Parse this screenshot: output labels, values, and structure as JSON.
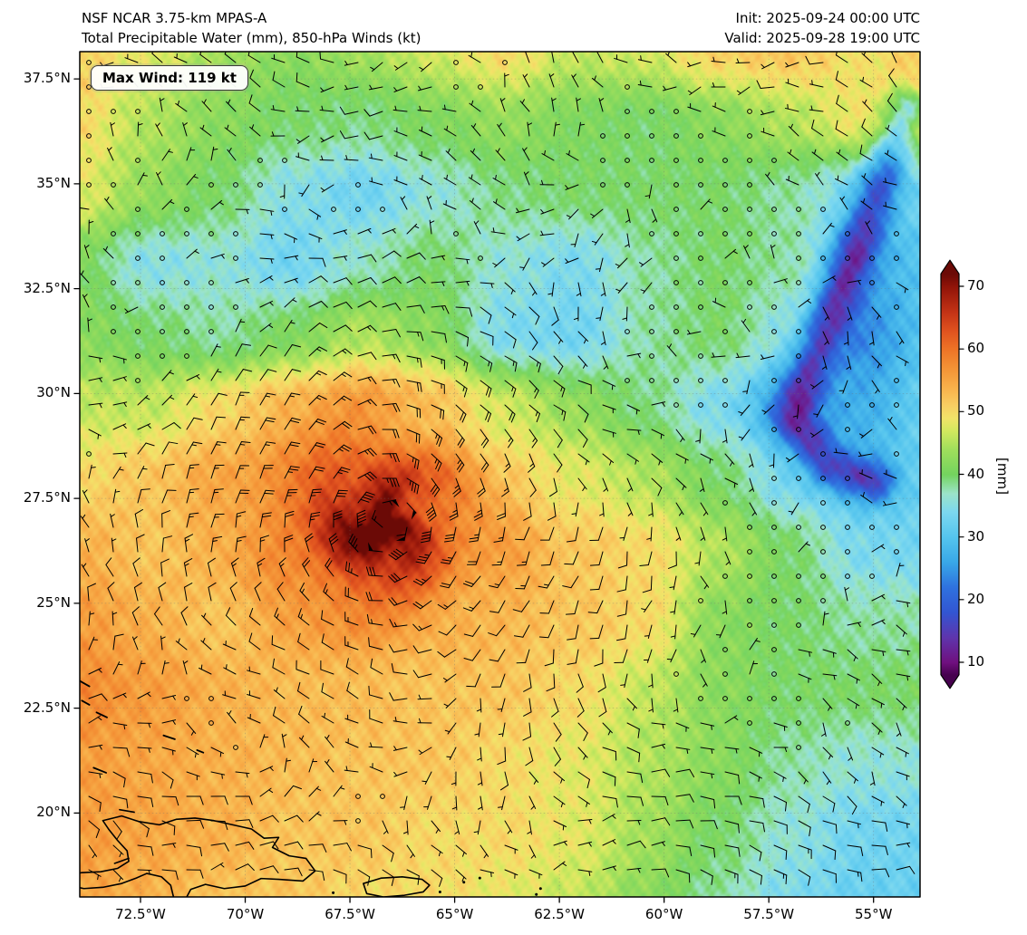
{
  "header": {
    "title_line1": "NSF NCAR 3.75-km MPAS-A",
    "title_line2": "Total Precipitable Water (mm), 850-hPa Winds (kt)",
    "init_label": "Init: 2025-09-24 00:00 UTC",
    "valid_label": "Valid: 2025-09-28 19:00 UTC"
  },
  "map": {
    "max_wind_label": "Max Wind: 119 kt"
  },
  "chart_data": {
    "type": "heatmap",
    "title": "NSF NCAR 3.75-km MPAS-A — Total Precipitable Water (mm), 850-hPa Winds (kt)",
    "init_time": "2025-09-24 00:00 UTC",
    "valid_time": "2025-09-28 19:00 UTC",
    "max_wind_kt": 119,
    "extent": {
      "lon_min": -73.95,
      "lon_max": -53.89,
      "lat_min": 18.0,
      "lat_max": 38.15
    },
    "xticks": [
      {
        "value": -72.5,
        "label": "72.5°W"
      },
      {
        "value": -70.0,
        "label": "70°W"
      },
      {
        "value": -67.5,
        "label": "67.5°W"
      },
      {
        "value": -65.0,
        "label": "65°W"
      },
      {
        "value": -62.5,
        "label": "62.5°W"
      },
      {
        "value": -60.0,
        "label": "60°W"
      },
      {
        "value": -57.5,
        "label": "57.5°W"
      },
      {
        "value": -55.0,
        "label": "55°W"
      }
    ],
    "yticks": [
      {
        "value": 37.5,
        "label": "37.5°N"
      },
      {
        "value": 35.0,
        "label": "35°N"
      },
      {
        "value": 32.5,
        "label": "32.5°N"
      },
      {
        "value": 30.0,
        "label": "30°N"
      },
      {
        "value": 27.5,
        "label": "27.5°N"
      },
      {
        "value": 25.0,
        "label": "25°N"
      },
      {
        "value": 22.5,
        "label": "22.5°N"
      },
      {
        "value": 20.0,
        "label": "20°N"
      }
    ],
    "colorbar": {
      "label": "[mm]",
      "ticks": [
        10,
        20,
        30,
        40,
        50,
        60,
        70
      ],
      "vmin": 8,
      "vmax": 72,
      "stops": [
        [
          8,
          "#46024e"
        ],
        [
          10,
          "#70107f"
        ],
        [
          14,
          "#5f35ad"
        ],
        [
          18,
          "#3356d2"
        ],
        [
          22,
          "#2f72df"
        ],
        [
          26,
          "#39a8e8"
        ],
        [
          30,
          "#55c5ee"
        ],
        [
          34,
          "#7cd8f0"
        ],
        [
          37,
          "#9ce4c9"
        ],
        [
          40,
          "#74d45f"
        ],
        [
          44,
          "#a0df5c"
        ],
        [
          47,
          "#d3e95f"
        ],
        [
          49,
          "#f2e469"
        ],
        [
          51,
          "#f8cf63"
        ],
        [
          54,
          "#f8b04a"
        ],
        [
          57,
          "#f49336"
        ],
        [
          60,
          "#ee7427"
        ],
        [
          63,
          "#e0521f"
        ],
        [
          66,
          "#c33316"
        ],
        [
          70,
          "#911409"
        ],
        [
          72,
          "#6b0a06"
        ]
      ]
    },
    "storm": {
      "center_lon": -66.6,
      "center_lat": 26.9,
      "core_peak_mm": 72,
      "max_wind_kt": 119
    },
    "grid": {
      "lons": [
        -74.0,
        -72.3,
        -70.6,
        -68.9,
        -67.2,
        -65.5,
        -63.8,
        -62.1,
        -60.4,
        -58.7,
        -57.0,
        -55.3,
        -53.6
      ],
      "lats": [
        38.2,
        36.5,
        34.8,
        33.1,
        31.4,
        29.7,
        28.0,
        26.3,
        24.6,
        22.9,
        21.2,
        19.5,
        17.8
      ],
      "values_mm": [
        [
          51,
          48,
          44,
          42,
          44,
          47,
          50,
          46,
          47,
          51,
          52,
          49,
          52
        ],
        [
          50,
          45,
          42,
          40,
          39,
          41,
          43,
          41,
          40,
          42,
          45,
          49,
          52
        ],
        [
          48,
          43,
          40,
          35,
          33,
          36,
          39,
          40,
          40,
          40,
          38,
          33,
          33
        ],
        [
          41,
          35,
          36,
          33,
          37,
          40,
          36,
          34,
          38,
          40,
          38,
          27,
          30
        ],
        [
          42,
          40,
          38,
          41,
          45,
          42,
          34,
          33,
          38,
          40,
          35,
          24,
          30
        ],
        [
          46,
          46,
          50,
          54,
          56,
          53,
          47,
          43,
          39,
          34,
          26,
          27,
          32
        ],
        [
          50,
          52,
          55,
          58,
          61,
          57,
          52,
          48,
          45,
          40,
          33,
          30,
          32
        ],
        [
          54,
          52,
          54,
          59,
          65,
          59,
          55,
          52,
          50,
          45,
          40,
          34,
          33
        ],
        [
          56,
          54,
          52,
          55,
          56,
          55,
          53,
          52,
          50,
          42,
          40,
          38,
          38
        ],
        [
          58,
          56,
          54,
          53,
          53,
          52,
          52,
          50,
          46,
          42,
          40,
          40,
          40
        ],
        [
          56,
          55,
          54,
          53,
          52,
          52,
          50,
          48,
          45,
          42,
          38,
          36,
          36
        ],
        [
          56,
          55,
          54,
          52,
          52,
          50,
          50,
          48,
          44,
          40,
          36,
          33,
          33
        ],
        [
          55,
          54,
          52,
          52,
          50,
          50,
          48,
          46,
          42,
          38,
          34,
          32,
          32
        ]
      ]
    },
    "dry_filament": [
      [
        -54.2,
        36.8
      ],
      [
        -55.1,
        34.2
      ],
      [
        -55.9,
        32.2
      ],
      [
        -56.6,
        30.4
      ],
      [
        -56.9,
        29.4
      ],
      [
        -56.1,
        28.3
      ],
      [
        -55.0,
        27.9
      ]
    ],
    "calm_zones": [
      {
        "lon": -58.8,
        "lat": 34.7,
        "sigma": 2.0
      },
      {
        "lon": -56.2,
        "lat": 26.3,
        "sigma": 2.2
      },
      {
        "lon": -72.8,
        "lat": 34.2,
        "sigma": 1.2
      }
    ],
    "coastlines": [
      [
        [
          -73.4,
          19.82
        ],
        [
          -72.95,
          19.93
        ],
        [
          -72.55,
          19.8
        ],
        [
          -72.05,
          19.72
        ],
        [
          -71.65,
          19.85
        ],
        [
          -71.2,
          19.88
        ],
        [
          -70.75,
          19.82
        ],
        [
          -70.3,
          19.72
        ],
        [
          -69.85,
          19.62
        ],
        [
          -69.55,
          19.4
        ],
        [
          -69.2,
          19.42
        ],
        [
          -69.35,
          19.18
        ],
        [
          -68.95,
          18.98
        ],
        [
          -68.55,
          18.92
        ],
        [
          -68.33,
          18.62
        ],
        [
          -68.62,
          18.38
        ],
        [
          -69.2,
          18.42
        ],
        [
          -69.62,
          18.44
        ],
        [
          -70.0,
          18.26
        ],
        [
          -70.5,
          18.2
        ],
        [
          -70.95,
          18.3
        ],
        [
          -71.3,
          18.18
        ],
        [
          -71.45,
          17.9
        ],
        [
          -71.7,
          17.95
        ],
        [
          -71.78,
          18.28
        ],
        [
          -72.0,
          18.48
        ],
        [
          -72.35,
          18.56
        ],
        [
          -72.6,
          18.45
        ],
        [
          -72.95,
          18.32
        ],
        [
          -73.4,
          18.23
        ],
        [
          -73.85,
          18.2
        ],
        [
          -74.25,
          18.28
        ],
        [
          -74.3,
          18.5
        ],
        [
          -73.9,
          18.58
        ],
        [
          -73.45,
          18.6
        ],
        [
          -73.05,
          18.68
        ],
        [
          -72.78,
          18.85
        ],
        [
          -72.82,
          19.1
        ],
        [
          -73.05,
          19.35
        ],
        [
          -73.25,
          19.6
        ],
        [
          -73.4,
          19.82
        ]
      ],
      [
        [
          -67.18,
          18.32
        ],
        [
          -66.75,
          18.45
        ],
        [
          -66.25,
          18.48
        ],
        [
          -65.78,
          18.42
        ],
        [
          -65.6,
          18.28
        ],
        [
          -65.75,
          18.12
        ],
        [
          -66.2,
          18.04
        ],
        [
          -66.7,
          18.0
        ],
        [
          -67.1,
          18.08
        ],
        [
          -67.18,
          18.32
        ]
      ],
      [
        [
          -73.12,
          18.8
        ],
        [
          -72.78,
          18.92
        ]
      ],
      [
        [
          -73.0,
          20.08
        ],
        [
          -72.65,
          20.02
        ]
      ]
    ],
    "dash_marks": [
      [
        [
          -73.95,
          23.15
        ],
        [
          -73.72,
          23.02
        ]
      ],
      [
        [
          -73.9,
          22.68
        ],
        [
          -73.72,
          22.58
        ]
      ],
      [
        [
          -73.55,
          22.4
        ],
        [
          -73.3,
          22.28
        ]
      ],
      [
        [
          -71.95,
          21.85
        ],
        [
          -71.68,
          21.76
        ]
      ],
      [
        [
          -71.15,
          21.5
        ],
        [
          -71.0,
          21.44
        ]
      ],
      [
        [
          -73.62,
          21.08
        ],
        [
          -73.32,
          20.96
        ]
      ]
    ],
    "island_marks": [
      [
        -67.9,
        18.1
      ],
      [
        -64.78,
        18.35
      ],
      [
        -64.4,
        18.45
      ],
      [
        -63.05,
        18.06
      ],
      [
        -62.95,
        18.2
      ],
      [
        -65.35,
        18.12
      ]
    ]
  }
}
